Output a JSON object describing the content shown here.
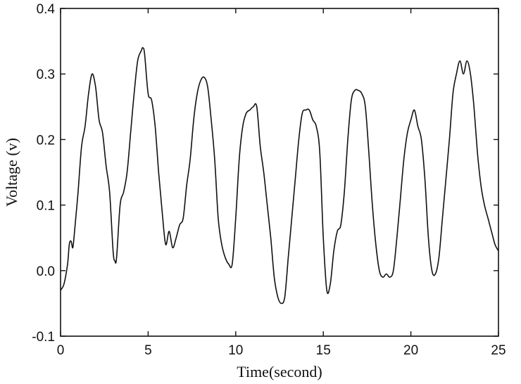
{
  "chart_data": {
    "type": "line",
    "title": "",
    "xlabel": "Time(second)",
    "ylabel": "Voltage (v)",
    "xlim": [
      0,
      25
    ],
    "ylim": [
      -0.1,
      0.4
    ],
    "xticks": [
      0,
      5,
      10,
      15,
      20,
      25
    ],
    "xtick_labels": [
      "0",
      "5",
      "10",
      "15",
      "20",
      "25"
    ],
    "yticks": [
      -0.1,
      0.0,
      0.1,
      0.2,
      0.3,
      0.4
    ],
    "ytick_labels": [
      "-0.1",
      "0.0",
      "0.1",
      "0.2",
      "0.3",
      "0.4"
    ],
    "grid": false,
    "legend": "none",
    "series": [
      {
        "x": [
          0,
          0.2,
          0.4,
          0.5,
          0.6,
          0.7,
          0.8,
          1.0,
          1.2,
          1.4,
          1.6,
          1.8,
          2.0,
          2.2,
          2.4,
          2.6,
          2.8,
          3.0,
          3.1,
          3.2,
          3.4,
          3.6,
          3.8,
          4.0,
          4.2,
          4.4,
          4.6,
          4.7,
          4.8,
          5.0,
          5.2,
          5.4,
          5.6,
          5.8,
          6.0,
          6.2,
          6.4,
          6.6,
          6.8,
          7.0,
          7.2,
          7.4,
          7.6,
          7.8,
          8.0,
          8.2,
          8.4,
          8.6,
          8.8,
          9.0,
          9.2,
          9.4,
          9.6,
          9.8,
          10.0,
          10.2,
          10.4,
          10.6,
          10.8,
          11.0,
          11.2,
          11.4,
          11.6,
          11.8,
          12.0,
          12.2,
          12.4,
          12.6,
          12.8,
          13.0,
          13.2,
          13.4,
          13.6,
          13.8,
          14.0,
          14.2,
          14.4,
          14.6,
          14.8,
          15.0,
          15.2,
          15.4,
          15.6,
          15.8,
          16.0,
          16.2,
          16.4,
          16.6,
          16.8,
          17.0,
          17.2,
          17.4,
          17.6,
          17.8,
          18.0,
          18.2,
          18.4,
          18.6,
          18.8,
          19.0,
          19.2,
          19.4,
          19.6,
          19.8,
          20.0,
          20.2,
          20.4,
          20.6,
          20.8,
          21.0,
          21.2,
          21.4,
          21.6,
          21.8,
          22.0,
          22.2,
          22.4,
          22.6,
          22.8,
          23.0,
          23.2,
          23.4,
          23.6,
          23.8,
          24.0,
          24.2,
          24.4,
          24.6,
          24.8,
          25.0
        ],
        "y": [
          -0.03,
          -0.02,
          0.01,
          0.04,
          0.045,
          0.035,
          0.06,
          0.12,
          0.19,
          0.22,
          0.27,
          0.3,
          0.28,
          0.23,
          0.21,
          0.16,
          0.12,
          0.03,
          0.015,
          0.02,
          0.1,
          0.12,
          0.15,
          0.21,
          0.27,
          0.32,
          0.335,
          0.34,
          0.33,
          0.27,
          0.26,
          0.22,
          0.15,
          0.09,
          0.04,
          0.06,
          0.035,
          0.05,
          0.07,
          0.08,
          0.13,
          0.17,
          0.23,
          0.27,
          0.29,
          0.295,
          0.28,
          0.23,
          0.17,
          0.08,
          0.04,
          0.02,
          0.01,
          0.01,
          0.08,
          0.17,
          0.22,
          0.24,
          0.245,
          0.25,
          0.25,
          0.19,
          0.15,
          0.1,
          0.05,
          -0.01,
          -0.04,
          -0.05,
          -0.04,
          0.02,
          0.08,
          0.14,
          0.2,
          0.24,
          0.245,
          0.245,
          0.23,
          0.22,
          0.18,
          0.05,
          -0.03,
          -0.02,
          0.03,
          0.06,
          0.07,
          0.12,
          0.2,
          0.26,
          0.275,
          0.275,
          0.27,
          0.25,
          0.18,
          0.1,
          0.04,
          0.0,
          -0.01,
          -0.005,
          -0.01,
          0.0,
          0.05,
          0.11,
          0.17,
          0.21,
          0.23,
          0.245,
          0.22,
          0.2,
          0.14,
          0.05,
          0.0,
          -0.005,
          0.02,
          0.08,
          0.14,
          0.2,
          0.27,
          0.3,
          0.32,
          0.3,
          0.32,
          0.3,
          0.25,
          0.18,
          0.13,
          0.1,
          0.08,
          0.06,
          0.04,
          0.03
        ]
      }
    ]
  }
}
